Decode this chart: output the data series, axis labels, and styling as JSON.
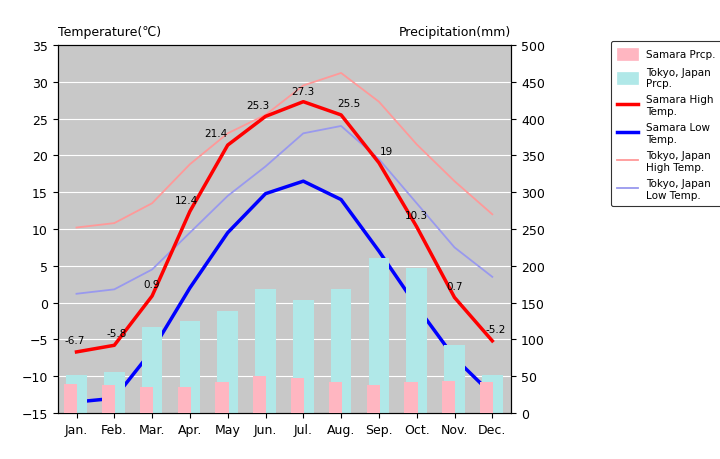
{
  "months": [
    "Jan.",
    "Feb.",
    "Mar.",
    "Apr.",
    "May",
    "Jun.",
    "Jul.",
    "Aug.",
    "Sep.",
    "Oct.",
    "Nov.",
    "Dec."
  ],
  "samara_high": [
    -6.7,
    -5.8,
    0.9,
    12.4,
    21.4,
    25.3,
    27.3,
    25.5,
    19.0,
    10.3,
    0.7,
    -5.2
  ],
  "samara_low": [
    -13.5,
    -13.0,
    -6.5,
    2.0,
    9.5,
    14.8,
    16.5,
    14.0,
    7.0,
    -0.5,
    -7.5,
    -12.5
  ],
  "tokyo_high": [
    10.2,
    10.8,
    13.5,
    18.8,
    23.0,
    25.5,
    29.5,
    31.2,
    27.3,
    21.5,
    16.5,
    12.0
  ],
  "tokyo_low": [
    1.2,
    1.8,
    4.5,
    9.5,
    14.5,
    18.5,
    23.0,
    24.0,
    19.5,
    13.5,
    7.5,
    3.5
  ],
  "samara_prcp": [
    40,
    38,
    35,
    36,
    42,
    50,
    48,
    42,
    38,
    42,
    44,
    42
  ],
  "tokyo_prcp": [
    52,
    56,
    117,
    125,
    138,
    168,
    154,
    168,
    210,
    197,
    93,
    51
  ],
  "temp_ylim": [
    -15,
    35
  ],
  "prcp_ylim": [
    0,
    500
  ],
  "samara_high_color": "#ff0000",
  "samara_low_color": "#0000ff",
  "tokyo_high_color": "#ff9999",
  "tokyo_low_color": "#9999ee",
  "samara_prcp_color": "#ffb6c1",
  "tokyo_prcp_color": "#b0e8e8",
  "plot_bg_color": "#c8c8c8",
  "title_left": "Temperature(℃)",
  "title_right": "Precipitation(mm)",
  "label_samara_high": "Samara High\nTemp.",
  "label_samara_low": "Samara Low\nTemp.",
  "label_tokyo_high": "Tokyo, Japan\nHigh Temp.",
  "label_tokyo_low": "Tokyo, Japan\nLow Temp.",
  "label_samara_prcp": "Samara Prcp.",
  "label_tokyo_prcp": "Tokyo, Japan\nPrcp.",
  "fig_width": 7.2,
  "fig_height": 4.6,
  "dpi": 100
}
